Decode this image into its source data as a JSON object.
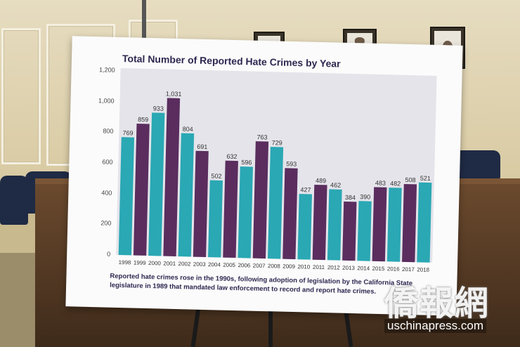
{
  "chart_data": {
    "type": "bar",
    "title": "Total Number of Reported Hate Crimes by Year",
    "xlabel": "",
    "ylabel": "",
    "ylim": [
      0,
      1200
    ],
    "yticks": [
      "0",
      "200",
      "400",
      "600",
      "800",
      "1,000",
      "1,200"
    ],
    "grid": false,
    "categories": [
      "1998",
      "1999",
      "2000",
      "2001",
      "2002",
      "2003",
      "2004",
      "2005",
      "2006",
      "2007",
      "2008",
      "2009",
      "2010",
      "2011",
      "2012",
      "2013",
      "2014",
      "2015",
      "2016",
      "2017",
      "2018"
    ],
    "values": [
      769,
      859,
      933,
      1031,
      804,
      691,
      502,
      632,
      596,
      763,
      729,
      593,
      427,
      489,
      462,
      384,
      390,
      483,
      482,
      508,
      521
    ],
    "value_labels": [
      "769",
      "859",
      "933",
      "1,031",
      "804",
      "691",
      "502",
      "632",
      "596",
      "763",
      "729",
      "593",
      "427",
      "489",
      "462",
      "384",
      "390",
      "483",
      "482",
      "508",
      "521"
    ],
    "colors": {
      "teal": "#2aa8b4",
      "purple": "#5a2d5e"
    },
    "bar_color_pattern": [
      "teal",
      "purple",
      "teal",
      "purple",
      "teal",
      "purple",
      "teal",
      "purple",
      "teal",
      "purple",
      "teal",
      "purple",
      "teal",
      "purple",
      "teal",
      "purple",
      "teal",
      "purple",
      "teal",
      "purple",
      "teal"
    ]
  },
  "caption": "Reported hate crimes rose in the 1990s, following adoption of legislation by the California State legislature in 1989 that mandated law enforcement to record and report hate crimes.",
  "watermark": {
    "text": "僑報網",
    "url": "uschinapress.com"
  }
}
